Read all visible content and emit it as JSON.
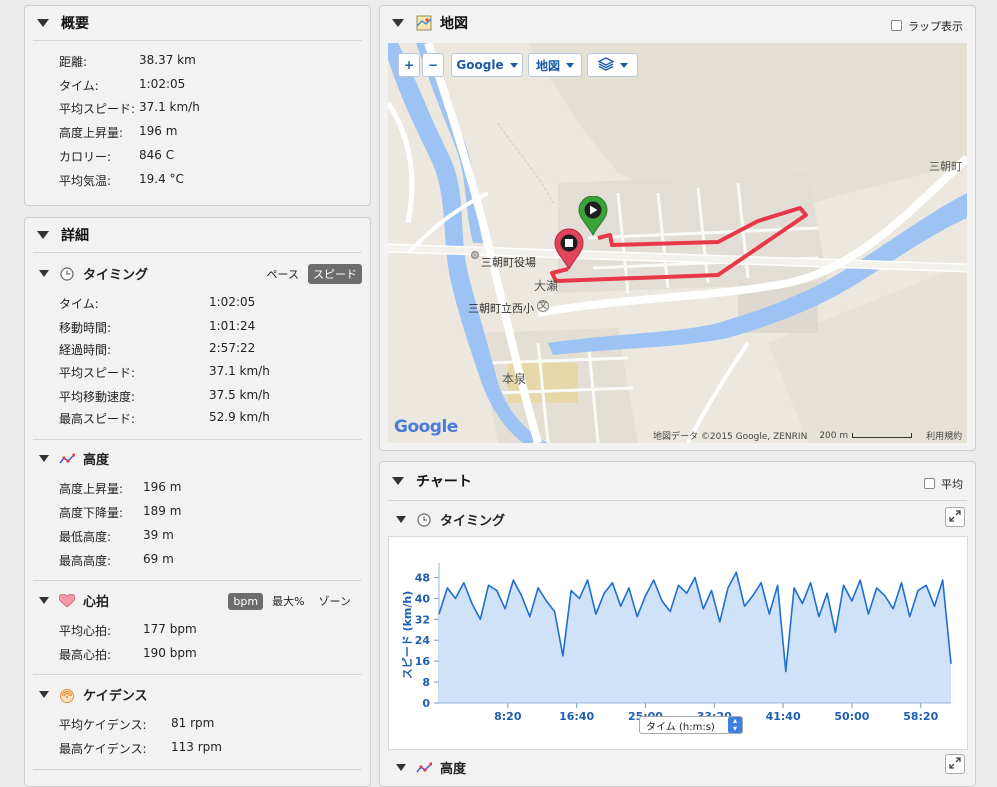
{
  "summary": {
    "title": "概要",
    "rows": [
      {
        "label": "距離:",
        "value": "38.37 km"
      },
      {
        "label": "タイム:",
        "value": "1:02:05"
      },
      {
        "label": "平均スピード:",
        "value": "37.1 km/h"
      },
      {
        "label": "高度上昇量:",
        "value": "196 m"
      },
      {
        "label": "カロリー:",
        "value": "846 C"
      },
      {
        "label": "平均気温:",
        "value": "19.4 °C"
      }
    ]
  },
  "details": {
    "title": "詳細",
    "timing": {
      "title": "タイミング",
      "toggle": [
        "ペース",
        "スピード"
      ],
      "rows": [
        {
          "label": "タイム:",
          "value": "1:02:05"
        },
        {
          "label": "移動時間:",
          "value": "1:01:24"
        },
        {
          "label": "経過時間:",
          "value": "2:57:22"
        },
        {
          "label": "平均スピード:",
          "value": "37.1 km/h"
        },
        {
          "label": "平均移動速度:",
          "value": "37.5 km/h"
        },
        {
          "label": "最高スピード:",
          "value": "52.9 km/h"
        }
      ]
    },
    "elevation": {
      "title": "高度",
      "rows": [
        {
          "label": "高度上昇量:",
          "value": "196 m"
        },
        {
          "label": "高度下降量:",
          "value": "189 m"
        },
        {
          "label": "最低高度:",
          "value": "39 m"
        },
        {
          "label": "最高高度:",
          "value": "69 m"
        }
      ]
    },
    "heart": {
      "title": "心拍",
      "toggle": [
        "bpm",
        "最大%",
        "ゾーン"
      ],
      "rows": [
        {
          "label": "平均心拍:",
          "value": "177 bpm"
        },
        {
          "label": "最高心拍:",
          "value": "190 bpm"
        }
      ]
    },
    "cadence": {
      "title": "ケイデンス",
      "rows": [
        {
          "label": "平均ケイデンス:",
          "value": "81 rpm"
        },
        {
          "label": "最高ケイデンス:",
          "value": "113 rpm"
        }
      ]
    }
  },
  "map": {
    "title": "地図",
    "lap_label": "ラップ表示",
    "zoom_in": "+",
    "zoom_out": "−",
    "provider": "Google",
    "maptype": "地図",
    "labels": {
      "town_office": "三朝町役場",
      "oose": "大瀬",
      "school": "三朝町立西小",
      "school_mark": "文",
      "motoizumi": "本泉",
      "misasa": "三朝町"
    },
    "attribution": "地図データ ©2015 Google, ZENRIN",
    "scale": "200 m",
    "terms": "利用規約",
    "logo": "Google"
  },
  "chart": {
    "title": "チャート",
    "avg_label": "平均",
    "timing_title": "タイミング",
    "elevation_title": "高度",
    "x_selector": "タイム (h:m:s)"
  },
  "chart_data": {
    "type": "area",
    "ylabel": "スピード (km/h)",
    "xlabel": "タイム (h:m:s)",
    "ylim": [
      0,
      52
    ],
    "yticks": [
      0,
      8,
      16,
      24,
      32,
      40,
      48
    ],
    "xticks": [
      "8:20",
      "16:40",
      "25:00",
      "33:20",
      "41:40",
      "50:00",
      "58:20"
    ],
    "x_seconds": [
      0,
      60,
      120,
      180,
      240,
      300,
      360,
      420,
      480,
      540,
      600,
      660,
      720,
      780,
      840,
      900,
      960,
      1020,
      1080,
      1140,
      1200,
      1260,
      1320,
      1380,
      1440,
      1500,
      1560,
      1620,
      1680,
      1740,
      1800,
      1860,
      1920,
      1980,
      2040,
      2100,
      2160,
      2220,
      2280,
      2340,
      2400,
      2460,
      2520,
      2580,
      2640,
      2700,
      2760,
      2820,
      2880,
      2940,
      3000,
      3060,
      3120,
      3180,
      3240,
      3300,
      3360,
      3420,
      3480,
      3540,
      3600,
      3660,
      3720
    ],
    "speed_kmh": [
      34,
      44,
      40,
      46,
      38,
      32,
      45,
      43,
      36,
      47,
      41,
      33,
      44,
      39,
      35,
      18,
      43,
      40,
      47,
      34,
      42,
      46,
      37,
      44,
      33,
      41,
      47,
      39,
      35,
      45,
      42,
      48,
      36,
      43,
      31,
      44,
      50,
      37,
      41,
      46,
      34,
      45,
      12,
      44,
      38,
      46,
      33,
      42,
      27,
      45,
      39,
      47,
      34,
      44,
      41,
      36,
      46,
      33,
      43,
      45,
      37,
      47,
      15
    ]
  }
}
